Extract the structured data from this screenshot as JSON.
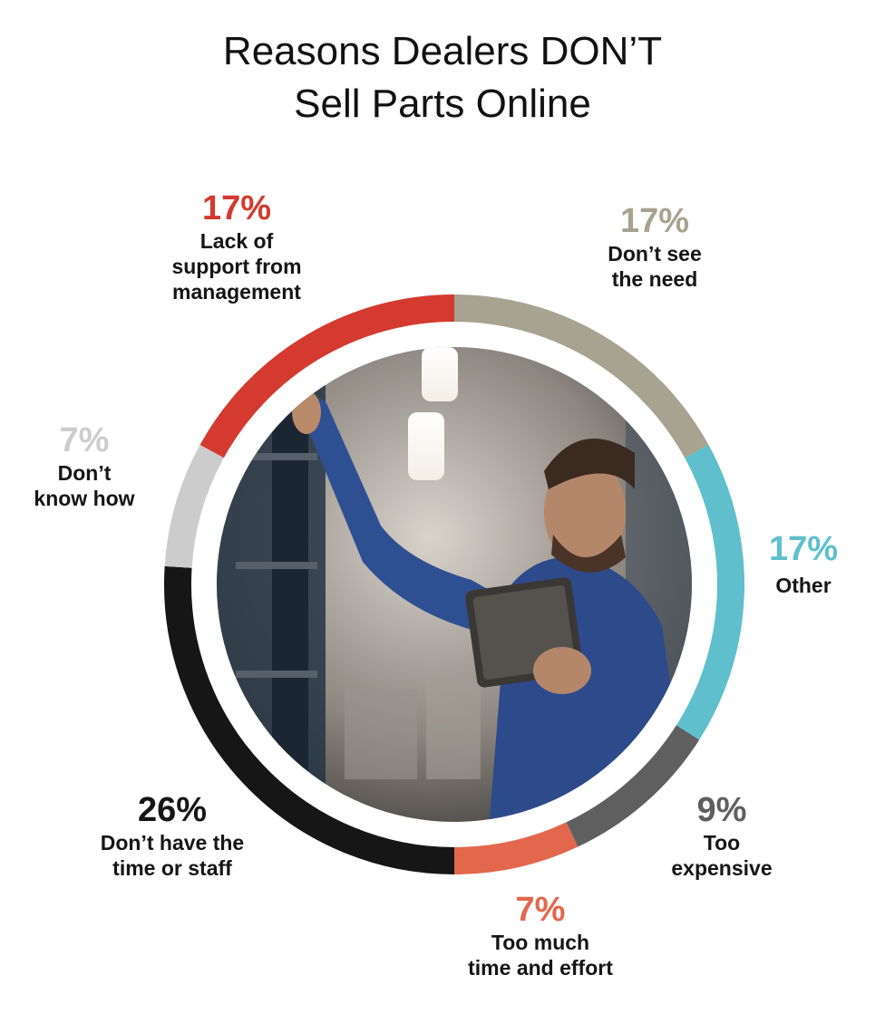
{
  "title_line1": "Reasons Dealers DON’T",
  "title_line2": "Sell Parts Online",
  "colors": {
    "lack_of_support": "#d43a2f",
    "dont_see_need": "#a8a290",
    "other": "#5fbfcc",
    "too_expensive": "#5f5f5f",
    "too_much_time": "#e2674c",
    "dont_have_time": "#161616",
    "dont_know_how": "#cccccc"
  },
  "chart_data": {
    "type": "pie",
    "style": "donut",
    "title": "Reasons Dealers DON’T Sell Parts Online",
    "start": "top",
    "direction": "clockwise",
    "center_image": "warehouse worker holding tablet",
    "slices": [
      {
        "label": "Don’t see the need",
        "label_lines": [
          "Don’t see",
          "the need"
        ],
        "value": 17,
        "display": "17%",
        "color": "#a8a290"
      },
      {
        "label": "Other",
        "label_lines": [
          "Other"
        ],
        "value": 17,
        "display": "17%",
        "color": "#5fbfcc"
      },
      {
        "label": "Too expensive",
        "label_lines": [
          "Too",
          "expensive"
        ],
        "value": 9,
        "display": "9%",
        "color": "#5f5f5f"
      },
      {
        "label": "Too much time and effort",
        "label_lines": [
          "Too much",
          "time and effort"
        ],
        "value": 7,
        "display": "7%",
        "color": "#e2674c"
      },
      {
        "label": "Don’t have the time or staff",
        "label_lines": [
          "Don’t have the",
          "time or staff"
        ],
        "value": 26,
        "display": "26%",
        "color": "#161616"
      },
      {
        "label": "Don’t know how",
        "label_lines": [
          "Don’t",
          "know how"
        ],
        "value": 7,
        "display": "7%",
        "color": "#cccccc"
      },
      {
        "label": "Lack of support from management",
        "label_lines": [
          "Lack of",
          "support from",
          "management"
        ],
        "value": 17,
        "display": "17%",
        "color": "#d43a2f"
      }
    ]
  }
}
